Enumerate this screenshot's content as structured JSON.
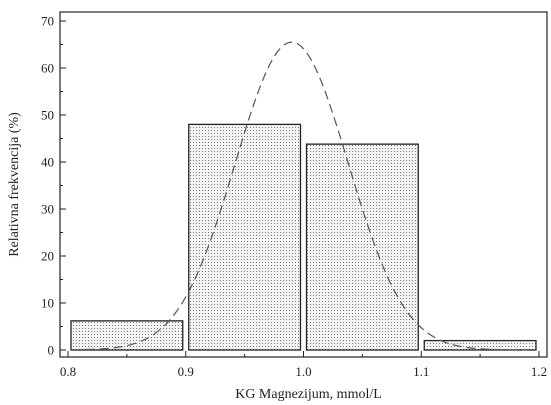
{
  "chart_data": {
    "type": "bar",
    "xlabel": "KG Magnezijum, mmol/L",
    "ylabel": "Relativna frekvencija (%)",
    "xlim": [
      0.8,
      1.2
    ],
    "ylim": [
      0,
      70
    ],
    "x_ticks": [
      "0.8",
      "0.9",
      "1.0",
      "1.1",
      "1.2"
    ],
    "y_ticks": [
      "0",
      "10",
      "20",
      "30",
      "40",
      "50",
      "60",
      "70"
    ],
    "bins": [
      {
        "from": 0.8,
        "to": 0.9,
        "value": 6.2
      },
      {
        "from": 0.9,
        "to": 1.0,
        "value": 48.0
      },
      {
        "from": 1.0,
        "to": 1.1,
        "value": 43.8
      },
      {
        "from": 1.1,
        "to": 1.2,
        "value": 2.0
      }
    ],
    "fit_curve": {
      "type": "normal",
      "mean": 0.99,
      "sd": 0.048,
      "peak": 65.5,
      "style": "dashed"
    },
    "bar_fill": "dotted",
    "colors": {
      "bar_edge": "#222222",
      "bar_fill": "#f2f2f2",
      "curve": "#555555",
      "axis": "#222222"
    }
  }
}
